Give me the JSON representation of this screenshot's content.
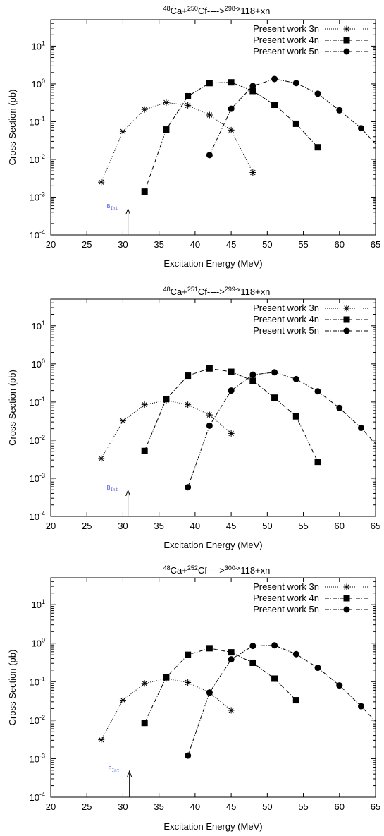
{
  "chart_data": [
    {
      "type": "line",
      "title": {
        "pre": "48",
        "a": "Ca+",
        "sup2": "250",
        "b": "Cf---->",
        "sup3": "298-x",
        "c": "118+xn"
      },
      "xlabel": "Excitation Energy (MeV)",
      "ylabel": "Cross Section (pb)",
      "xlim": [
        20,
        65
      ],
      "ylim": [
        0.0001,
        50
      ],
      "yscale": "log",
      "xticks": [
        "20",
        "25",
        "30",
        "35",
        "40",
        "45",
        "50",
        "55",
        "60",
        "65"
      ],
      "yticks": [
        {
          "base": "10",
          "exp": "-4"
        },
        {
          "base": "10",
          "exp": "-3"
        },
        {
          "base": "10",
          "exp": "-2"
        },
        {
          "base": "10",
          "exp": "-1"
        },
        {
          "base": "10",
          "exp": "0"
        },
        {
          "base": "10",
          "exp": "1"
        }
      ],
      "legend_position": "top-right",
      "marker_label": {
        "main": "B",
        "sub": "Int"
      },
      "marker_x": 30.7,
      "series": [
        {
          "name": "Present work 3n",
          "marker": "star",
          "dash": "dotted",
          "x": [
            27,
            30,
            33,
            36,
            39,
            42,
            45,
            48
          ],
          "y": [
            0.0025,
            0.055,
            0.21,
            0.32,
            0.27,
            0.15,
            0.06,
            0.0045
          ]
        },
        {
          "name": "Present work 4n",
          "marker": "square",
          "dash": "dashdot",
          "x": [
            33,
            36,
            39,
            42,
            45,
            48,
            51,
            54,
            57
          ],
          "y": [
            0.0014,
            0.062,
            0.47,
            1.05,
            1.1,
            0.65,
            0.28,
            0.088,
            0.021
          ]
        },
        {
          "name": "Present work 5n",
          "marker": "circle",
          "dash": "dashdot",
          "x": [
            42,
            45,
            48,
            51,
            54,
            57,
            60,
            63,
            66
          ],
          "y": [
            0.013,
            0.22,
            0.88,
            1.35,
            1.05,
            0.55,
            0.2,
            0.067,
            0.016
          ]
        }
      ]
    },
    {
      "type": "line",
      "title": {
        "pre": "48",
        "a": "Ca+",
        "sup2": "251",
        "b": "Cf---->",
        "sup3": "299-x",
        "c": "118+xn"
      },
      "xlabel": "Excitation Energy (MeV)",
      "ylabel": "Cross Section (pb)",
      "xlim": [
        20,
        65
      ],
      "ylim": [
        0.0001,
        50
      ],
      "yscale": "log",
      "xticks": [
        "20",
        "25",
        "30",
        "35",
        "40",
        "45",
        "50",
        "55",
        "60",
        "65"
      ],
      "yticks": [
        {
          "base": "10",
          "exp": "-4"
        },
        {
          "base": "10",
          "exp": "-3"
        },
        {
          "base": "10",
          "exp": "-2"
        },
        {
          "base": "10",
          "exp": "-1"
        },
        {
          "base": "10",
          "exp": "0"
        },
        {
          "base": "10",
          "exp": "1"
        }
      ],
      "legend_position": "top-right",
      "marker_label": {
        "main": "B",
        "sub": "Int"
      },
      "marker_x": 30.7,
      "series": [
        {
          "name": "Present work 3n",
          "marker": "star",
          "dash": "dotted",
          "x": [
            27,
            30,
            33,
            36,
            39,
            42,
            45
          ],
          "y": [
            0.0033,
            0.032,
            0.085,
            0.11,
            0.085,
            0.046,
            0.015
          ]
        },
        {
          "name": "Present work 4n",
          "marker": "square",
          "dash": "dashdot",
          "x": [
            33,
            36,
            39,
            42,
            45,
            48,
            51,
            54,
            57
          ],
          "y": [
            0.0052,
            0.12,
            0.49,
            0.76,
            0.62,
            0.36,
            0.13,
            0.042,
            0.0027
          ]
        },
        {
          "name": "Present work 5n",
          "marker": "circle",
          "dash": "dashdot",
          "x": [
            39,
            42,
            45,
            48,
            51,
            54,
            57,
            60,
            63,
            66
          ],
          "y": [
            0.00058,
            0.024,
            0.2,
            0.52,
            0.6,
            0.4,
            0.19,
            0.07,
            0.021,
            0.005
          ]
        }
      ]
    },
    {
      "type": "line",
      "title": {
        "pre": "48",
        "a": "Ca+",
        "sup2": "252",
        "b": "Cf---->",
        "sup3": "300-x",
        "c": "118+xn"
      },
      "xlabel": "Excitation Energy (MeV)",
      "ylabel": "Cross Section (pb)",
      "xlim": [
        20,
        65
      ],
      "ylim": [
        0.0001,
        50
      ],
      "yscale": "log",
      "xticks": [
        "20",
        "25",
        "30",
        "35",
        "40",
        "45",
        "50",
        "55",
        "60",
        "65"
      ],
      "yticks": [
        {
          "base": "10",
          "exp": "-4"
        },
        {
          "base": "10",
          "exp": "-3"
        },
        {
          "base": "10",
          "exp": "-2"
        },
        {
          "base": "10",
          "exp": "-1"
        },
        {
          "base": "10",
          "exp": "0"
        },
        {
          "base": "10",
          "exp": "1"
        }
      ],
      "legend_position": "top-right",
      "marker_label": {
        "main": "B",
        "sub": "Int"
      },
      "marker_x": 30.9,
      "series": [
        {
          "name": "Present work 3n",
          "marker": "star",
          "dash": "dotted",
          "x": [
            27,
            30,
            33,
            36,
            39,
            42,
            45
          ],
          "y": [
            0.0031,
            0.033,
            0.09,
            0.12,
            0.095,
            0.052,
            0.018
          ]
        },
        {
          "name": "Present work 4n",
          "marker": "square",
          "dash": "dashdot",
          "x": [
            33,
            36,
            39,
            42,
            45,
            48,
            51,
            54
          ],
          "y": [
            0.0085,
            0.13,
            0.5,
            0.74,
            0.58,
            0.31,
            0.12,
            0.033
          ]
        },
        {
          "name": "Present work 5n",
          "marker": "circle",
          "dash": "dashdot",
          "x": [
            39,
            42,
            45,
            48,
            51,
            54,
            57,
            60,
            63,
            66
          ],
          "y": [
            0.0012,
            0.052,
            0.38,
            0.85,
            0.88,
            0.52,
            0.23,
            0.08,
            0.023,
            0.006
          ]
        }
      ]
    }
  ]
}
